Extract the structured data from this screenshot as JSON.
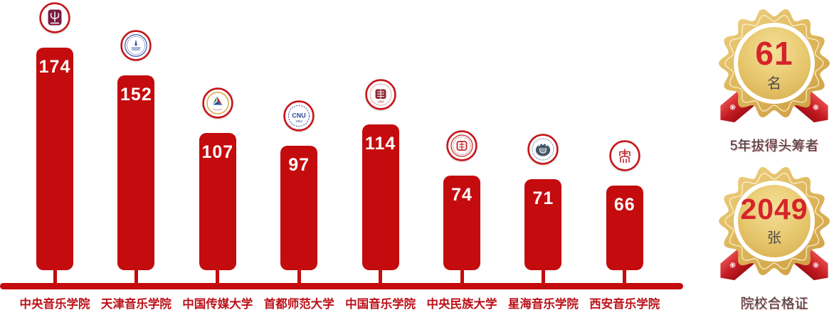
{
  "chart_data": {
    "type": "bar",
    "title": "",
    "xlabel": "",
    "ylabel": "",
    "grid": "off",
    "legend": "none",
    "ylim": [
      0,
      180
    ],
    "categories": [
      "中央音乐学院",
      "天津音乐学院",
      "中国传媒大学",
      "首都师范大学",
      "中国音乐学院",
      "中央民族大学",
      "星海音乐学院",
      "西安音乐学院"
    ],
    "values": [
      174,
      152,
      107,
      97,
      114,
      74,
      71,
      66
    ],
    "logos": [
      "central-conservatory-of-music-logo",
      "tianjin-conservatory-of-music-logo",
      "communication-university-of-china-logo",
      "capital-normal-university-logo",
      "china-conservatory-of-music-logo",
      "minzu-university-of-china-logo",
      "xinghai-conservatory-of-music-logo",
      "xian-conservatory-of-music-logo"
    ],
    "bar_color": "#c40b0d",
    "baseline_color": "#c40b0d",
    "value_label_color": "#ffffff",
    "category_label_color": "#bb1118"
  },
  "badges": [
    {
      "value": "61",
      "unit": "名",
      "label": "5年拔得头筹者",
      "number_color": "#d5242b"
    },
    {
      "value": "2049",
      "unit": "张",
      "label": "院校合格证",
      "number_color": "#d5242b"
    }
  ],
  "colors": {
    "gold_light": "#f0d584",
    "gold_dark": "#d3a74b",
    "ribbon_red": "#c41b22",
    "flower_icon": "❋"
  }
}
